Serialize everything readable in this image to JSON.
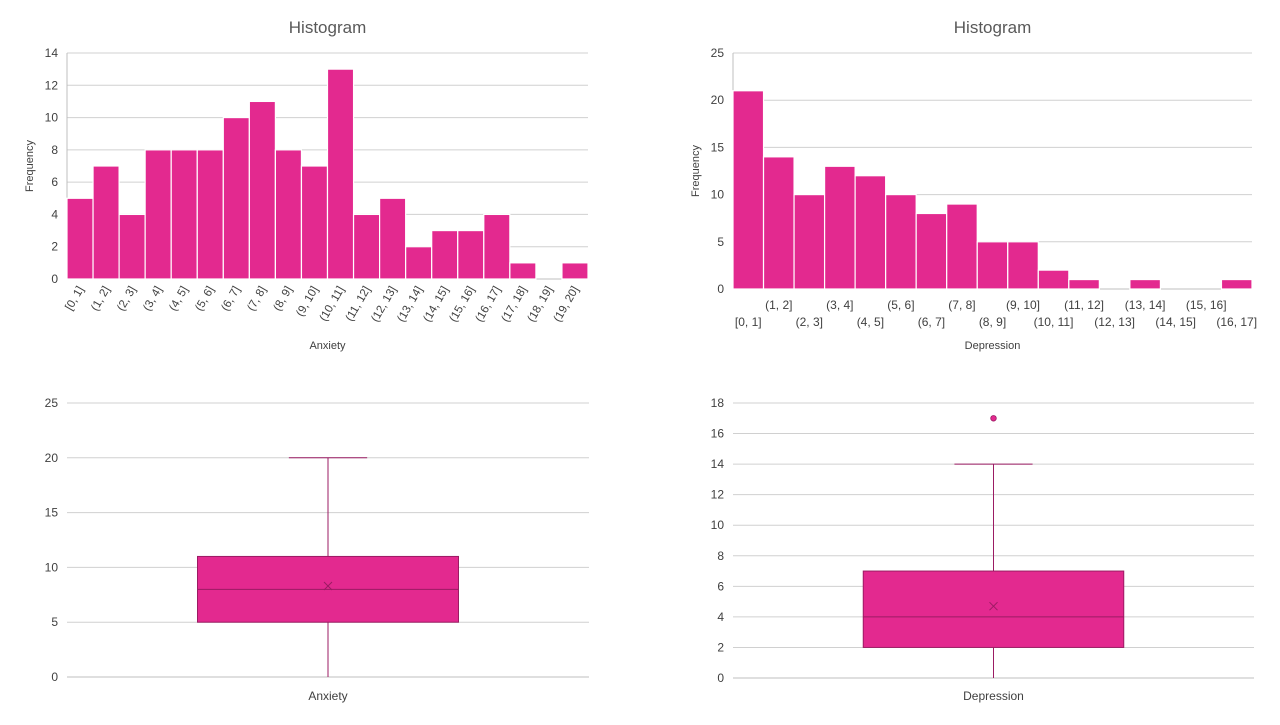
{
  "chart_data": [
    {
      "id": "anxiety-histogram",
      "type": "bar",
      "title": "Histogram",
      "xlabel": "Anxiety",
      "ylabel": "Frequency",
      "ylim": [
        0,
        14
      ],
      "ytick_step": 2,
      "grid": true,
      "color": "#E3298F",
      "categories": [
        "[0, 1]",
        "(1, 2]",
        "(2, 3]",
        "(3, 4]",
        "(4, 5]",
        "(5, 6]",
        "(6, 7]",
        "(7, 8]",
        "(8, 9]",
        "(9, 10]",
        "(10, 11]",
        "(11, 12]",
        "(12, 13]",
        "(13, 14]",
        "(14, 15]",
        "(15, 16]",
        "(16, 17]",
        "(17, 18]",
        "(18, 19]",
        "(19, 20]"
      ],
      "values": [
        5,
        7,
        4,
        8,
        8,
        8,
        10,
        11,
        8,
        7,
        13,
        4,
        5,
        2,
        3,
        3,
        4,
        1,
        0,
        1
      ]
    },
    {
      "id": "depression-histogram",
      "type": "bar",
      "title": "Histogram",
      "xlabel": "Depression",
      "ylabel": "Frequency",
      "ylim": [
        0,
        25
      ],
      "ytick_step": 5,
      "grid": true,
      "color": "#E3298F",
      "categories": [
        "[0, 1]",
        "(1, 2]",
        "(2, 3]",
        "(3, 4]",
        "(4, 5]",
        "(5, 6]",
        "(6, 7]",
        "(7, 8]",
        "(8, 9]",
        "(9, 10]",
        "(10, 11]",
        "(11, 12]",
        "(12, 13]",
        "(13, 14]",
        "(14, 15]",
        "(15, 16]",
        "(16, 17]"
      ],
      "values": [
        21,
        14,
        10,
        13,
        12,
        10,
        8,
        9,
        5,
        5,
        2,
        1,
        0,
        1,
        0,
        0,
        1
      ]
    },
    {
      "id": "anxiety-boxplot",
      "type": "box",
      "xlabel": "Anxiety",
      "ylim": [
        0,
        25
      ],
      "ytick_step": 5,
      "grid": true,
      "color": "#E3298F",
      "box": {
        "min": 0,
        "q1": 5,
        "median": 8,
        "q3": 11,
        "max": 20,
        "mean": 8.3,
        "outliers": []
      }
    },
    {
      "id": "depression-boxplot",
      "type": "box",
      "xlabel": "Depression",
      "ylim": [
        0,
        18
      ],
      "ytick_step": 2,
      "grid": true,
      "color": "#E3298F",
      "box": {
        "min": 0,
        "q1": 2,
        "median": 4,
        "q3": 7,
        "max": 14,
        "mean": 4.7,
        "outliers": [
          17
        ]
      }
    }
  ]
}
